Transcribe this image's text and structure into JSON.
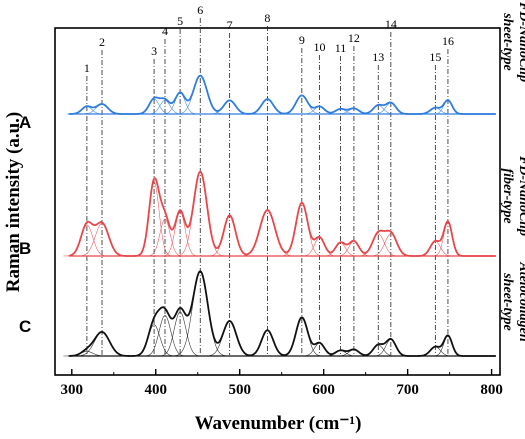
{
  "chart_data": {
    "type": "line",
    "xlabel": "Wavenumber (cm⁻¹)",
    "ylabel": "Raman intensity (a.u.)",
    "xlim": [
      280,
      810
    ],
    "xticks": [
      "300",
      "400",
      "500",
      "600",
      "700",
      "800"
    ],
    "grid": false,
    "peak_markers": [
      {
        "label": "1",
        "x": 318
      },
      {
        "label": "2",
        "x": 336
      },
      {
        "label": "3",
        "x": 398
      },
      {
        "label": "4",
        "x": 411
      },
      {
        "label": "5",
        "x": 429
      },
      {
        "label": "6",
        "x": 453
      },
      {
        "label": "7",
        "x": 488
      },
      {
        "label": "8",
        "x": 533
      },
      {
        "label": "9",
        "x": 574
      },
      {
        "label": "10",
        "x": 595
      },
      {
        "label": "11",
        "x": 620
      },
      {
        "label": "12",
        "x": 636
      },
      {
        "label": "13",
        "x": 665
      },
      {
        "label": "14",
        "x": 680
      },
      {
        "label": "15",
        "x": 733
      },
      {
        "label": "16",
        "x": 748
      }
    ],
    "series": [
      {
        "panel": "A",
        "name": "FD-NanoClip sheet-type",
        "side_label": [
          "FD-NanoClip",
          "sheet-type"
        ],
        "color": "#2f7de1",
        "peaks": [
          {
            "x": 318,
            "height": 0.12,
            "width": 6
          },
          {
            "x": 336,
            "height": 0.16,
            "width": 7
          },
          {
            "x": 398,
            "height": 0.24,
            "width": 6
          },
          {
            "x": 411,
            "height": 0.22,
            "width": 6
          },
          {
            "x": 429,
            "height": 0.34,
            "width": 6
          },
          {
            "x": 453,
            "height": 0.62,
            "width": 8
          },
          {
            "x": 488,
            "height": 0.22,
            "width": 7
          },
          {
            "x": 533,
            "height": 0.24,
            "width": 7
          },
          {
            "x": 574,
            "height": 0.3,
            "width": 7
          },
          {
            "x": 595,
            "height": 0.12,
            "width": 6
          },
          {
            "x": 620,
            "height": 0.08,
            "width": 6
          },
          {
            "x": 636,
            "height": 0.09,
            "width": 6
          },
          {
            "x": 665,
            "height": 0.14,
            "width": 6
          },
          {
            "x": 680,
            "height": 0.18,
            "width": 6
          },
          {
            "x": 733,
            "height": 0.1,
            "width": 6
          },
          {
            "x": 748,
            "height": 0.22,
            "width": 5
          }
        ]
      },
      {
        "panel": "B",
        "name": "FD-NanoClip fiber-type",
        "side_label": [
          "FD-NanoClip",
          "fiber-type"
        ],
        "color": "#e8474a",
        "peaks": [
          {
            "x": 318,
            "height": 0.42,
            "width": 7
          },
          {
            "x": 336,
            "height": 0.44,
            "width": 8
          },
          {
            "x": 398,
            "height": 1.0,
            "width": 6
          },
          {
            "x": 411,
            "height": 0.5,
            "width": 6
          },
          {
            "x": 429,
            "height": 0.6,
            "width": 6
          },
          {
            "x": 453,
            "height": 1.14,
            "width": 8
          },
          {
            "x": 488,
            "height": 0.55,
            "width": 7
          },
          {
            "x": 533,
            "height": 0.62,
            "width": 9
          },
          {
            "x": 574,
            "height": 0.72,
            "width": 7
          },
          {
            "x": 595,
            "height": 0.25,
            "width": 6
          },
          {
            "x": 620,
            "height": 0.18,
            "width": 6
          },
          {
            "x": 636,
            "height": 0.2,
            "width": 6
          },
          {
            "x": 665,
            "height": 0.3,
            "width": 7
          },
          {
            "x": 680,
            "height": 0.3,
            "width": 7
          },
          {
            "x": 733,
            "height": 0.2,
            "width": 6
          },
          {
            "x": 748,
            "height": 0.46,
            "width": 5
          }
        ]
      },
      {
        "panel": "C",
        "name": "Atelocollagen sheet-type",
        "side_label": [
          "Atelocollagen",
          "sheet-type"
        ],
        "color": "#111111",
        "peaks": [
          {
            "x": 318,
            "height": 0.05,
            "width": 7
          },
          {
            "x": 336,
            "height": 0.26,
            "width": 9
          },
          {
            "x": 398,
            "height": 0.34,
            "width": 7
          },
          {
            "x": 411,
            "height": 0.44,
            "width": 7
          },
          {
            "x": 429,
            "height": 0.48,
            "width": 7
          },
          {
            "x": 453,
            "height": 0.92,
            "width": 9
          },
          {
            "x": 488,
            "height": 0.38,
            "width": 8
          },
          {
            "x": 533,
            "height": 0.28,
            "width": 7
          },
          {
            "x": 574,
            "height": 0.42,
            "width": 7
          },
          {
            "x": 595,
            "height": 0.14,
            "width": 6
          },
          {
            "x": 620,
            "height": 0.06,
            "width": 6
          },
          {
            "x": 636,
            "height": 0.07,
            "width": 6
          },
          {
            "x": 665,
            "height": 0.12,
            "width": 6
          },
          {
            "x": 680,
            "height": 0.18,
            "width": 6
          },
          {
            "x": 733,
            "height": 0.1,
            "width": 6
          },
          {
            "x": 748,
            "height": 0.22,
            "width": 5
          }
        ]
      }
    ]
  }
}
